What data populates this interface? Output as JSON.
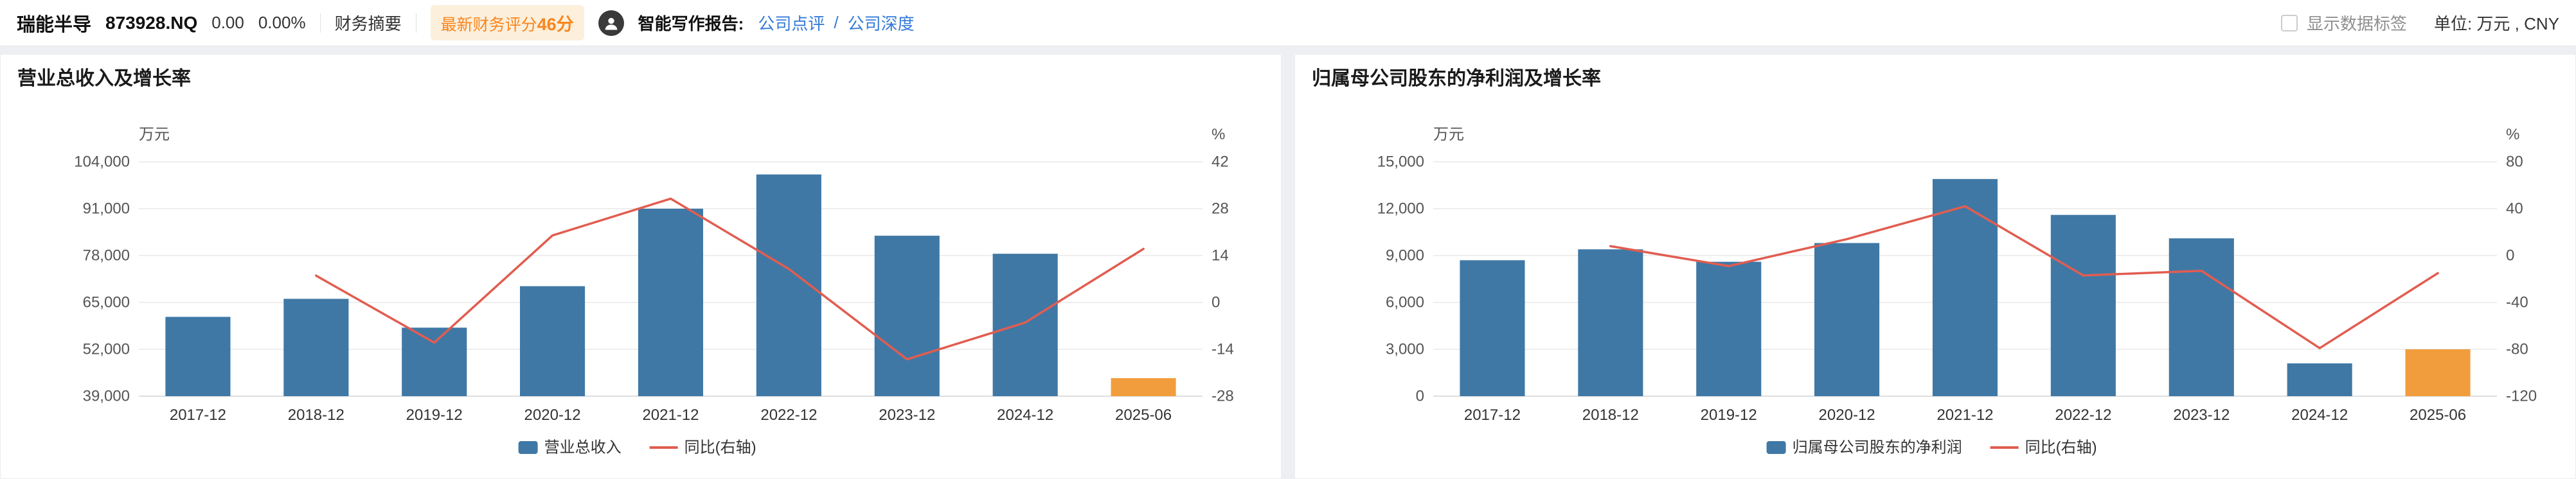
{
  "header": {
    "stock_name": "瑞能半导",
    "stock_code": "873928.NQ",
    "change": "0.00",
    "change_pct": "0.00%",
    "financial_summary": "财务摘要",
    "score_label": "最新财务评分",
    "score_value": "46分",
    "ai_report_label": "智能写作报告:",
    "link_review": "公司点评",
    "link_sep": "/",
    "link_depth": "公司深度",
    "show_labels": "显示数据标签",
    "unit": "单位: 万元 , CNY"
  },
  "colors": {
    "bar": "#3f78a5",
    "bar_highlight": "#f19d3d",
    "line": "#e15d50",
    "grid_line": "#e8e8e8",
    "axis_line": "#d4d4d4",
    "tick_text": "#555555",
    "category_text": "#333333",
    "legend_text": "#333333",
    "link": "#357bd8",
    "badge_bg": "#fcefdc",
    "badge_text": "#f9861d"
  },
  "chart_data": [
    {
      "type": "bar+line",
      "title": "营业总收入及增长率",
      "left_axis_label": "万元",
      "right_axis_label": "%",
      "categories": [
        "2017-12",
        "2018-12",
        "2019-12",
        "2020-12",
        "2021-12",
        "2022-12",
        "2023-12",
        "2024-12",
        "2025-06"
      ],
      "bar_series": {
        "name": "营业总收入",
        "values": [
          61000,
          66000,
          58000,
          69500,
          91000,
          100500,
          83500,
          78500,
          44000
        ]
      },
      "line_series": {
        "name": "同比(右轴)",
        "start_index": 1,
        "values": [
          8,
          -12,
          20,
          31,
          10,
          -17,
          -6,
          16
        ]
      },
      "left_axis": {
        "min": 39000,
        "max": 104000,
        "ticks": [
          39000,
          52000,
          65000,
          78000,
          91000,
          104000
        ]
      },
      "right_axis": {
        "min": -28,
        "max": 42,
        "ticks": [
          -28,
          -14,
          0,
          14,
          28,
          42
        ]
      },
      "highlight_last_bar": true,
      "legend_position": "bottom"
    },
    {
      "type": "bar+line",
      "title": "归属母公司股东的净利润及增长率",
      "left_axis_label": "万元",
      "right_axis_label": "%",
      "categories": [
        "2017-12",
        "2018-12",
        "2019-12",
        "2020-12",
        "2021-12",
        "2022-12",
        "2023-12",
        "2024-12",
        "2025-06"
      ],
      "bar_series": {
        "name": "归属母公司股东的净利润",
        "values": [
          8700,
          9400,
          8600,
          9800,
          13900,
          11600,
          10100,
          2100,
          3000
        ]
      },
      "line_series": {
        "name": "同比(右轴)",
        "start_index": 1,
        "values": [
          8,
          -9,
          14,
          42,
          -17,
          -13,
          -79,
          -15
        ]
      },
      "left_axis": {
        "min": 0,
        "max": 15000,
        "ticks": [
          0,
          3000,
          6000,
          9000,
          12000,
          15000
        ]
      },
      "right_axis": {
        "min": -120,
        "max": 80,
        "ticks": [
          -120,
          -80,
          -40,
          0,
          40,
          80
        ]
      },
      "highlight_last_bar": true,
      "legend_position": "bottom"
    }
  ]
}
